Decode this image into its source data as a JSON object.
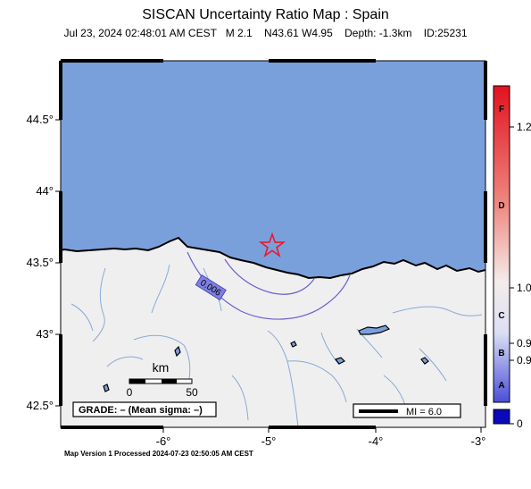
{
  "header": {
    "title": "SISCAN Uncertainty Ratio Map : Spain",
    "subtitle": "Jul 23, 2024 02:48:01 AM CEST   M 2.1    N43.61 W4.95    Depth: -1.3km    ID:25231"
  },
  "map": {
    "x_ticks": [
      "-6°",
      "-5°",
      "-4°",
      "-3°"
    ],
    "y_ticks": [
      "44.5°",
      "44°",
      "43.5°",
      "43°",
      "42.5°"
    ],
    "contour_label": "0.006",
    "epicenter": {
      "lat": 43.61,
      "lon": -4.95
    },
    "scalebar": {
      "unit": "km",
      "start": "0",
      "end": "50"
    },
    "grade_text": "GRADE: – (Mean sigma: –)",
    "mi_text": "MI = 6.0",
    "colors": {
      "sea": "#7aa0dc",
      "land": "#efefef",
      "star": "#e8192c",
      "contour": "#6a5fd0",
      "rivers": "#8aa8d8"
    }
  },
  "colorbar": {
    "letters": [
      "F",
      "D",
      "C",
      "B",
      "A"
    ],
    "values": [
      "1.2",
      "1.0",
      "0.9",
      "0.9",
      "0"
    ]
  },
  "footer": {
    "text": "Map Version 1 Processed 2024-07-23 02:50:05 AM CEST"
  }
}
